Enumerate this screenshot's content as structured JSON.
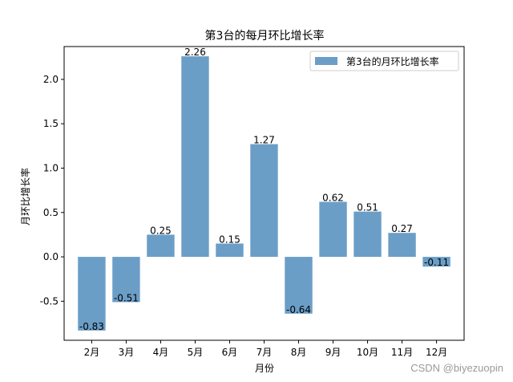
{
  "chart_data": {
    "type": "bar",
    "title": "第3台的每月环比增长率",
    "xlabel": "月份",
    "ylabel": "月环比增长率",
    "categories": [
      "2月",
      "3月",
      "4月",
      "5月",
      "6月",
      "7月",
      "8月",
      "9月",
      "10月",
      "11月",
      "12月"
    ],
    "series": [
      {
        "name": "第3台的月环比增长率",
        "values": [
          -0.83,
          -0.51,
          0.25,
          2.26,
          0.15,
          1.27,
          -0.64,
          0.62,
          0.51,
          0.27,
          -0.11
        ],
        "color": "#6b9ec7"
      }
    ],
    "data_labels": [
      "-0.83",
      "-0.51",
      "0.25",
      "2.26",
      "0.15",
      "1.27",
      "-0.64",
      "0.62",
      "0.51",
      "0.27",
      "-0.11"
    ],
    "yticks": [
      "-0.5",
      "0.0",
      "0.5",
      "1.0",
      "1.5",
      "2.0"
    ],
    "ylim": [
      -0.94,
      2.37
    ],
    "grid": false,
    "legend_position": "top-right"
  },
  "watermark": "CSDN @biyezuopin"
}
